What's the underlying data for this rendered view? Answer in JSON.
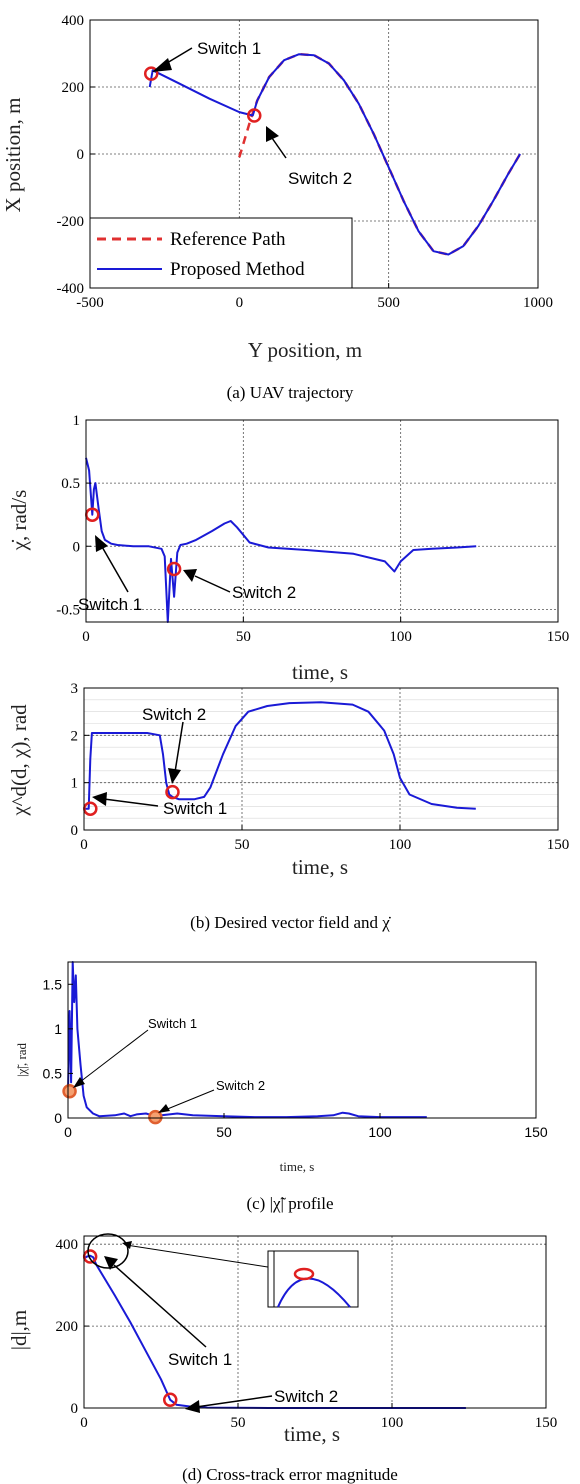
{
  "chart_data": [
    {
      "type": "line",
      "caption": "(a) UAV trajectory",
      "xlabel": "Y position, m",
      "ylabel": "X position, m",
      "xlim": [
        -500,
        1000
      ],
      "ylim": [
        -400,
        400
      ],
      "xticks": [
        -500,
        0,
        500,
        1000
      ],
      "yticks": [
        -400,
        -200,
        0,
        200,
        400
      ],
      "grid": true,
      "legend_position": "lower-left",
      "series": [
        {
          "name": "Reference Path",
          "color": "#e03030",
          "style": "dashed",
          "x": [
            0,
            40,
            60,
            100,
            150,
            200,
            250,
            300,
            350,
            400,
            450,
            500,
            550,
            600,
            650,
            700,
            750,
            800,
            850,
            900,
            940
          ],
          "y": [
            -10,
            110,
            160,
            230,
            280,
            298,
            295,
            270,
            220,
            150,
            60,
            -40,
            -140,
            -230,
            -290,
            -300,
            -275,
            -215,
            -140,
            -60,
            0
          ]
        },
        {
          "name": "Proposed Method",
          "color": "#1a1ad6",
          "style": "solid",
          "x": [
            -300,
            -290,
            -200,
            -100,
            0,
            45,
            60,
            100,
            150,
            200,
            250,
            300,
            350,
            400,
            450,
            500,
            550,
            600,
            650,
            700,
            750,
            800,
            850,
            900,
            940
          ],
          "y": [
            200,
            250,
            210,
            165,
            125,
            115,
            160,
            230,
            280,
            298,
            295,
            270,
            220,
            150,
            60,
            -40,
            -140,
            -230,
            -290,
            -300,
            -275,
            -215,
            -140,
            -60,
            0
          ]
        }
      ],
      "markers": [
        {
          "x": -295,
          "y": 240
        },
        {
          "x": 50,
          "y": 115
        }
      ],
      "annotations": [
        "Switch 1",
        "Switch 2"
      ]
    },
    {
      "type": "line",
      "xlabel": "time, s",
      "ylabel": "χ̇, rad/s",
      "xlim": [
        0,
        150
      ],
      "ylim": [
        -0.6,
        1
      ],
      "xticks": [
        0,
        50,
        100,
        150
      ],
      "yticks": [
        -0.5,
        0,
        0.5,
        1
      ],
      "grid": true,
      "series": [
        {
          "color": "#1a1ad6",
          "x": [
            0,
            0.5,
            1,
            2,
            2.5,
            3,
            4,
            5,
            6,
            8,
            10,
            15,
            20,
            24,
            25,
            26,
            27,
            28,
            29,
            30,
            32,
            35,
            40,
            44,
            46,
            48,
            52,
            58,
            70,
            85,
            95,
            98,
            100,
            104,
            110,
            118,
            124
          ],
          "y": [
            0.7,
            0.65,
            0.6,
            0.25,
            0.45,
            0.5,
            0.3,
            0.12,
            0.05,
            0.02,
            0.01,
            0,
            0,
            -0.02,
            -0.08,
            -0.6,
            -0.1,
            -0.4,
            -0.05,
            0.01,
            0.02,
            0.05,
            0.12,
            0.18,
            0.2,
            0.15,
            0.03,
            -0.01,
            -0.03,
            -0.06,
            -0.12,
            -0.2,
            -0.12,
            -0.03,
            -0.02,
            -0.01,
            0
          ]
        }
      ],
      "markers": [
        {
          "x": 2,
          "y": 0.25
        },
        {
          "x": 28,
          "y": -0.18
        }
      ],
      "annotations": [
        "Switch 1",
        "Switch 2"
      ]
    },
    {
      "type": "line",
      "caption": "(b) Desired vector field and χ̇",
      "xlabel": "time, s",
      "ylabel": "χ^d(d, χ), rad",
      "xlim": [
        0,
        150
      ],
      "ylim": [
        0,
        3
      ],
      "xticks": [
        0,
        50,
        100,
        150
      ],
      "yticks": [
        0,
        1,
        2,
        3
      ],
      "grid": true,
      "series": [
        {
          "color": "#1a1ad6",
          "x": [
            0,
            1.5,
            2,
            2.5,
            3,
            20,
            24,
            25,
            26,
            27,
            28,
            30,
            35,
            38,
            40,
            44,
            48,
            52,
            58,
            65,
            75,
            85,
            90,
            95,
            98,
            100,
            103,
            110,
            118,
            124
          ],
          "y": [
            0.45,
            0.45,
            1.5,
            2.05,
            2.05,
            2.05,
            2.0,
            1.6,
            1.0,
            0.75,
            0.7,
            0.65,
            0.65,
            0.7,
            0.9,
            1.6,
            2.2,
            2.5,
            2.62,
            2.68,
            2.7,
            2.65,
            2.5,
            2.1,
            1.6,
            1.1,
            0.75,
            0.55,
            0.47,
            0.45
          ]
        }
      ],
      "markers": [
        {
          "x": 2,
          "y": 0.45
        },
        {
          "x": 28,
          "y": 0.8
        }
      ],
      "annotations": [
        "Switch 2",
        "Switch 1"
      ]
    },
    {
      "type": "line",
      "caption": "(c) |χ̃| profile",
      "xlabel": "time, s",
      "ylabel": "|χ̃|, rad",
      "xlim": [
        0,
        150
      ],
      "ylim": [
        0,
        1.75
      ],
      "xticks": [
        0,
        50,
        100,
        150
      ],
      "yticks": [
        0,
        0.5,
        1,
        1.5
      ],
      "grid": false,
      "series": [
        {
          "color": "#1a1ad6",
          "x": [
            0,
            0.5,
            1,
            1.5,
            2,
            2.5,
            3,
            4,
            5,
            6,
            8,
            10,
            15,
            18,
            20,
            22,
            25,
            27,
            28,
            30,
            35,
            40,
            50,
            60,
            70,
            80,
            85,
            88,
            90,
            93,
            100,
            115
          ],
          "y": [
            0.3,
            1.2,
            0.4,
            1.75,
            1.3,
            1.6,
            1.0,
            0.6,
            0.25,
            0.12,
            0.05,
            0.02,
            0.03,
            0.05,
            0.02,
            0.04,
            0.05,
            0.03,
            0.01,
            0.03,
            0.05,
            0.03,
            0.02,
            0.01,
            0.01,
            0.02,
            0.03,
            0.06,
            0.05,
            0.02,
            0.01,
            0.01
          ]
        }
      ],
      "markers": [
        {
          "x": 0.5,
          "y": 0.3
        },
        {
          "x": 28,
          "y": 0.01
        }
      ],
      "annotations": [
        "Switch 1",
        "Switch 2"
      ]
    },
    {
      "type": "line",
      "caption": "(d) Cross-track error magnitude",
      "xlabel": "time, s",
      "ylabel": "|d|,m",
      "xlim": [
        0,
        150
      ],
      "ylim": [
        0,
        420
      ],
      "xticks": [
        0,
        50,
        100,
        150
      ],
      "yticks": [
        0,
        200,
        400
      ],
      "grid": true,
      "series": [
        {
          "color": "#1a1ad6",
          "x": [
            0,
            1,
            2,
            3,
            4,
            10,
            15,
            20,
            25,
            28,
            30,
            35,
            40,
            60,
            80,
            100,
            124
          ],
          "y": [
            365,
            370,
            372,
            368,
            350,
            275,
            210,
            140,
            70,
            20,
            8,
            3,
            1,
            0,
            0,
            0,
            0
          ]
        }
      ],
      "markers": [
        {
          "x": 2,
          "y": 370
        },
        {
          "x": 28,
          "y": 20
        }
      ],
      "annotations": [
        "Switch 1",
        "Switch 2"
      ]
    }
  ]
}
